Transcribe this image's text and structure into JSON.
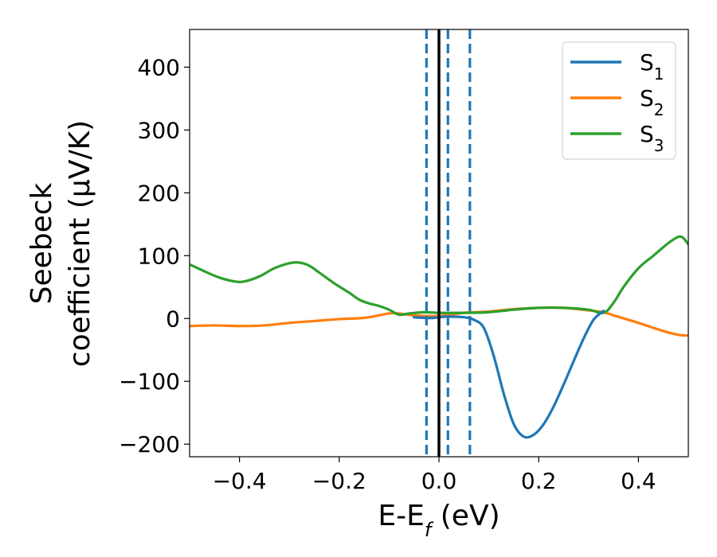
{
  "chart_data": {
    "type": "line",
    "xlabel": "E-E_f (eV)",
    "xlabel_main": "E-E",
    "xlabel_sub": "f",
    "xlabel_unit": " (eV)",
    "ylabel_line1": "Seebeck",
    "ylabel_line2": "coefficient  (μV/K)",
    "xlim": [
      -0.5,
      0.5
    ],
    "ylim": [
      -220,
      460
    ],
    "xticks": [
      -0.4,
      -0.2,
      0.0,
      0.2,
      0.4
    ],
    "xtick_labels": [
      "−0.4",
      "−0.2",
      "0.0",
      "0.2",
      "0.4"
    ],
    "yticks": [
      -200,
      -100,
      0,
      100,
      200,
      300,
      400
    ],
    "ytick_labels": [
      "−200",
      "−100",
      "0",
      "100",
      "200",
      "300",
      "400"
    ],
    "grid": false,
    "legend_position": "top-right",
    "vertical_lines": [
      {
        "x": 0.0,
        "style": "solid",
        "color": "#000000"
      },
      {
        "x": -0.025,
        "style": "dashed",
        "color": "#1f77b4"
      },
      {
        "x": 0.018,
        "style": "dashed",
        "color": "#1f77b4"
      },
      {
        "x": 0.062,
        "style": "dashed",
        "color": "#1f77b4"
      }
    ],
    "series": [
      {
        "name": "S1",
        "legend_main": "S",
        "legend_sub": "1",
        "color": "#1f77b4",
        "points": [
          [
            -0.05,
            2
          ],
          [
            -0.03,
            1
          ],
          [
            -0.01,
            1
          ],
          [
            0.0,
            2
          ],
          [
            0.02,
            3
          ],
          [
            0.05,
            2
          ],
          [
            0.07,
            -2
          ],
          [
            0.09,
            -15
          ],
          [
            0.11,
            -60
          ],
          [
            0.13,
            -120
          ],
          [
            0.15,
            -168
          ],
          [
            0.17,
            -188
          ],
          [
            0.19,
            -185
          ],
          [
            0.21,
            -168
          ],
          [
            0.23,
            -140
          ],
          [
            0.25,
            -105
          ],
          [
            0.27,
            -68
          ],
          [
            0.29,
            -32
          ],
          [
            0.31,
            -2
          ],
          [
            0.33,
            12
          ]
        ]
      },
      {
        "name": "S2",
        "legend_main": "S",
        "legend_sub": "2",
        "color": "#ff7f0e",
        "points": [
          [
            -0.5,
            -12
          ],
          [
            -0.45,
            -11
          ],
          [
            -0.4,
            -12
          ],
          [
            -0.35,
            -11
          ],
          [
            -0.3,
            -7
          ],
          [
            -0.25,
            -4
          ],
          [
            -0.2,
            -1
          ],
          [
            -0.15,
            1
          ],
          [
            -0.12,
            5
          ],
          [
            -0.1,
            8
          ],
          [
            -0.08,
            8
          ],
          [
            -0.05,
            5
          ],
          [
            0.0,
            4
          ],
          [
            0.05,
            9
          ],
          [
            0.1,
            11
          ],
          [
            0.15,
            15
          ],
          [
            0.2,
            17
          ],
          [
            0.25,
            17
          ],
          [
            0.3,
            13
          ],
          [
            0.33,
            10
          ],
          [
            0.35,
            5
          ],
          [
            0.4,
            -7
          ],
          [
            0.45,
            -20
          ],
          [
            0.48,
            -26
          ],
          [
            0.5,
            -27
          ]
        ]
      },
      {
        "name": "S3",
        "legend_main": "S",
        "legend_sub": "3",
        "color": "#2ca02c",
        "points": [
          [
            -0.5,
            86
          ],
          [
            -0.47,
            75
          ],
          [
            -0.44,
            65
          ],
          [
            -0.41,
            59
          ],
          [
            -0.39,
            59
          ],
          [
            -0.36,
            67
          ],
          [
            -0.33,
            80
          ],
          [
            -0.3,
            88
          ],
          [
            -0.28,
            89
          ],
          [
            -0.26,
            84
          ],
          [
            -0.24,
            73
          ],
          [
            -0.21,
            56
          ],
          [
            -0.18,
            41
          ],
          [
            -0.16,
            30
          ],
          [
            -0.14,
            24
          ],
          [
            -0.12,
            20
          ],
          [
            -0.1,
            14
          ],
          [
            -0.08,
            6
          ],
          [
            -0.06,
            8
          ],
          [
            -0.03,
            10
          ],
          [
            0.0,
            9
          ],
          [
            0.05,
            9
          ],
          [
            0.1,
            10
          ],
          [
            0.15,
            14
          ],
          [
            0.2,
            17
          ],
          [
            0.25,
            17
          ],
          [
            0.3,
            14
          ],
          [
            0.33,
            9
          ],
          [
            0.35,
            25
          ],
          [
            0.37,
            50
          ],
          [
            0.4,
            80
          ],
          [
            0.43,
            100
          ],
          [
            0.46,
            120
          ],
          [
            0.48,
            130
          ],
          [
            0.49,
            128
          ],
          [
            0.5,
            118
          ]
        ]
      }
    ]
  }
}
